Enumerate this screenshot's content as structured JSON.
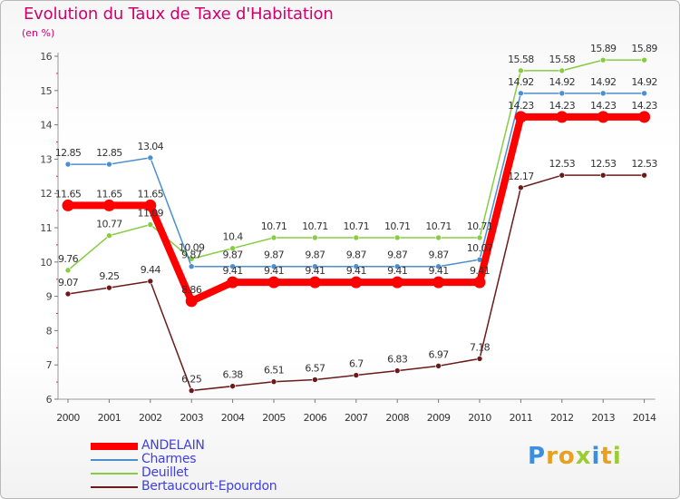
{
  "title": "Evolution du Taux de Taxe d'Habitation",
  "unit_label": "(en %)",
  "brand": {
    "letters": [
      "P",
      "r",
      "o",
      "x",
      "i",
      "t",
      "i"
    ],
    "colors": [
      "#3b8ee0",
      "#e8a020",
      "#e8a020",
      "#9acd32",
      "#3b8ee0",
      "#e8a020",
      "#9acd32"
    ]
  },
  "chart_data": {
    "type": "line",
    "x": [
      "2000",
      "2001",
      "2002",
      "2003",
      "2004",
      "2005",
      "2006",
      "2007",
      "2008",
      "2009",
      "2010",
      "2011",
      "2012",
      "2013",
      "2014"
    ],
    "ylim": [
      6,
      16
    ],
    "yticks": [
      "6",
      "7",
      "8",
      "9",
      "10",
      "11",
      "12",
      "13",
      "14",
      "15",
      "16"
    ],
    "grid": false,
    "legend_position": "bottom-left",
    "series": [
      {
        "name": "ANDELAIN",
        "color": "#ff0000",
        "values": [
          11.65,
          11.65,
          11.65,
          8.86,
          9.41,
          9.41,
          9.41,
          9.41,
          9.41,
          9.41,
          9.41,
          14.23,
          14.23,
          14.23,
          14.23
        ],
        "labels": [
          "11.65",
          "11.65",
          "11.65",
          "8.86",
          "9.41",
          "9.41",
          "9.41",
          "9.41",
          "9.41",
          "9.41",
          "9.41",
          "14.23",
          "14.23",
          "14.23",
          "14.23"
        ]
      },
      {
        "name": "Charmes",
        "color": "#4b8fcf",
        "values": [
          12.85,
          12.85,
          13.04,
          9.87,
          9.87,
          9.87,
          9.87,
          9.87,
          9.87,
          9.87,
          10.07,
          14.92,
          14.92,
          14.92,
          14.92
        ],
        "labels": [
          "12.85",
          "12.85",
          "13.04",
          "9.87",
          "9.87",
          "9.87",
          "9.87",
          "9.87",
          "9.87",
          "9.87",
          "10.07",
          "14.92",
          "14.92",
          "14.92",
          "14.92"
        ]
      },
      {
        "name": "Deuillet",
        "color": "#88cc44",
        "values": [
          9.76,
          10.77,
          11.09,
          10.09,
          10.4,
          10.71,
          10.71,
          10.71,
          10.71,
          10.71,
          10.71,
          15.58,
          15.58,
          15.89,
          15.89
        ],
        "labels": [
          "9.76",
          "10.77",
          "11.09",
          "10.09",
          "10.4",
          "10.71",
          "10.71",
          "10.71",
          "10.71",
          "10.71",
          "10.71",
          "15.58",
          "15.58",
          "15.89",
          "15.89"
        ]
      },
      {
        "name": "Bertaucourt-Epourdon",
        "color": "#6b1a1a",
        "values": [
          9.07,
          9.25,
          9.44,
          6.25,
          6.38,
          6.51,
          6.57,
          6.7,
          6.83,
          6.97,
          7.18,
          12.17,
          12.53,
          12.53,
          12.53
        ],
        "labels": [
          "9.07",
          "9.25",
          "9.44",
          "6.25",
          "6.38",
          "6.51",
          "6.57",
          "6.7",
          "6.83",
          "6.97",
          "7.18",
          "12.17",
          "12.53",
          "12.53",
          "12.53"
        ]
      }
    ]
  }
}
